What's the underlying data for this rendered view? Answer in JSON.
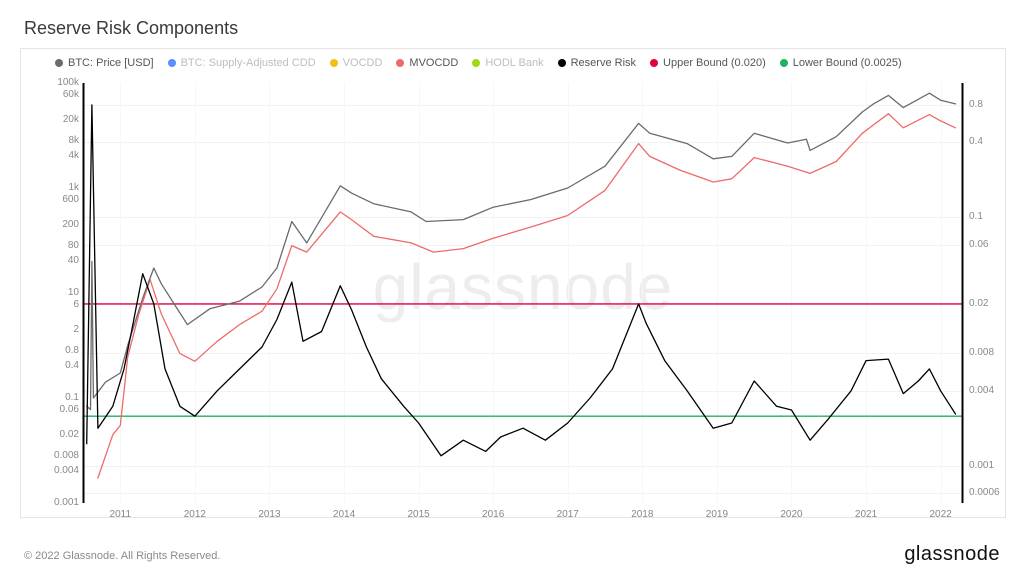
{
  "title": "Reserve Risk Components",
  "watermark": "glassnode",
  "footer_left": "© 2022 Glassnode. All Rights Reserved.",
  "footer_right": "glassnode",
  "chart": {
    "type": "line",
    "background_color": "#ffffff",
    "border_color": "#e5e5e5",
    "grid_color": "#f2f2f2",
    "axis_font_color": "#888888",
    "axis_fontsize": 10,
    "title_fontsize": 18,
    "legend_fontsize": 11,
    "x": {
      "min": 2010.5,
      "max": 2022.3,
      "ticks": [
        2011,
        2012,
        2013,
        2014,
        2015,
        2016,
        2017,
        2018,
        2019,
        2020,
        2021,
        2022
      ],
      "labels": [
        "2011",
        "2012",
        "2013",
        "2014",
        "2015",
        "2016",
        "2017",
        "2018",
        "2019",
        "2020",
        "2021",
        "2022"
      ]
    },
    "yLeft": {
      "scale": "log",
      "min": 0.001,
      "max": 100000,
      "ticks": [
        0.001,
        0.004,
        0.008,
        0.02,
        0.06,
        0.1,
        0.4,
        0.8,
        2,
        6,
        10,
        40,
        80,
        200,
        600,
        1000,
        4000,
        8000,
        20000,
        60000,
        100000
      ],
      "labels": [
        "0.001",
        "0.004",
        "0.008",
        "0.02",
        "0.06",
        "0.1",
        "0.4",
        "0.8",
        "2",
        "6",
        "10",
        "40",
        "80",
        "200",
        "600",
        "1k",
        "4k",
        "8k",
        "20k",
        "60k",
        "100k"
      ]
    },
    "yRight": {
      "scale": "log",
      "min": 0.0005,
      "max": 1.2,
      "ticks": [
        0.0006,
        0.001,
        0.004,
        0.008,
        0.02,
        0.06,
        0.1,
        0.4,
        0.8
      ],
      "labels": [
        "0.0006",
        "0.001",
        "0.004",
        "0.008",
        "0.02",
        "0.06",
        "0.1",
        "0.4",
        "0.8"
      ]
    },
    "legend": [
      {
        "key": "btc_price",
        "label": "BTC: Price [USD]",
        "color": "#6b6b6b",
        "dim": false
      },
      {
        "key": "cdd",
        "label": "BTC: Supply-Adjusted CDD",
        "color": "#5b8ff9",
        "dim": true
      },
      {
        "key": "vocdd",
        "label": "VOCDD",
        "color": "#f6bd16",
        "dim": true
      },
      {
        "key": "mvocdd",
        "label": "MVOCDD",
        "color": "#ef6a6a",
        "dim": false
      },
      {
        "key": "hodl",
        "label": "HODL Bank",
        "color": "#a0d911",
        "dim": true
      },
      {
        "key": "reserve",
        "label": "Reserve Risk",
        "color": "#000000",
        "dim": false
      },
      {
        "key": "upper",
        "label": "Upper Bound (0.020)",
        "color": "#e4003a",
        "dim": false
      },
      {
        "key": "lower",
        "label": "Lower Bound (0.0025)",
        "color": "#1db362",
        "dim": false
      }
    ],
    "bounds": {
      "upper": {
        "value": 0.02,
        "color": "#e4003a",
        "width": 1.4
      },
      "lower": {
        "value": 0.0025,
        "color": "#1db362",
        "width": 1.4
      }
    },
    "series_btc_price": {
      "color": "#6b6b6b",
      "width": 1.3,
      "axis": "left",
      "points": [
        [
          2010.55,
          0.07
        ],
        [
          2010.6,
          0.06
        ],
        [
          2010.62,
          40
        ],
        [
          2010.64,
          0.1
        ],
        [
          2010.8,
          0.2
        ],
        [
          2011.0,
          0.3
        ],
        [
          2011.1,
          1.0
        ],
        [
          2011.3,
          8
        ],
        [
          2011.45,
          30
        ],
        [
          2011.55,
          15
        ],
        [
          2011.9,
          2.5
        ],
        [
          2012.2,
          5
        ],
        [
          2012.6,
          7
        ],
        [
          2012.9,
          13
        ],
        [
          2013.1,
          30
        ],
        [
          2013.3,
          230
        ],
        [
          2013.5,
          90
        ],
        [
          2013.95,
          1100
        ],
        [
          2014.1,
          800
        ],
        [
          2014.4,
          500
        ],
        [
          2014.9,
          350
        ],
        [
          2015.1,
          230
        ],
        [
          2015.6,
          250
        ],
        [
          2016.0,
          430
        ],
        [
          2016.5,
          600
        ],
        [
          2017.0,
          1000
        ],
        [
          2017.5,
          2600
        ],
        [
          2017.95,
          17000
        ],
        [
          2018.1,
          11000
        ],
        [
          2018.6,
          7000
        ],
        [
          2018.95,
          3600
        ],
        [
          2019.2,
          4000
        ],
        [
          2019.5,
          11000
        ],
        [
          2019.95,
          7200
        ],
        [
          2020.2,
          8500
        ],
        [
          2020.25,
          5200
        ],
        [
          2020.6,
          9500
        ],
        [
          2020.95,
          28000
        ],
        [
          2021.1,
          40000
        ],
        [
          2021.3,
          58000
        ],
        [
          2021.5,
          34000
        ],
        [
          2021.85,
          64000
        ],
        [
          2022.0,
          47000
        ],
        [
          2022.2,
          40000
        ]
      ]
    },
    "series_mvocdd": {
      "color": "#ef6a6a",
      "width": 1.3,
      "axis": "left",
      "points": [
        [
          2010.7,
          0.003
        ],
        [
          2010.9,
          0.02
        ],
        [
          2011.0,
          0.03
        ],
        [
          2011.1,
          0.6
        ],
        [
          2011.25,
          4
        ],
        [
          2011.4,
          18
        ],
        [
          2011.55,
          4
        ],
        [
          2011.8,
          0.7
        ],
        [
          2012.0,
          0.5
        ],
        [
          2012.3,
          1.2
        ],
        [
          2012.6,
          2.5
        ],
        [
          2012.9,
          4.5
        ],
        [
          2013.1,
          12
        ],
        [
          2013.3,
          80
        ],
        [
          2013.5,
          60
        ],
        [
          2013.95,
          350
        ],
        [
          2014.1,
          250
        ],
        [
          2014.4,
          120
        ],
        [
          2014.9,
          90
        ],
        [
          2015.2,
          60
        ],
        [
          2015.6,
          70
        ],
        [
          2016.0,
          110
        ],
        [
          2016.5,
          180
        ],
        [
          2017.0,
          300
        ],
        [
          2017.5,
          900
        ],
        [
          2017.95,
          7000
        ],
        [
          2018.1,
          4000
        ],
        [
          2018.5,
          2200
        ],
        [
          2018.95,
          1300
        ],
        [
          2019.2,
          1500
        ],
        [
          2019.5,
          3800
        ],
        [
          2019.95,
          2600
        ],
        [
          2020.25,
          1900
        ],
        [
          2020.6,
          3200
        ],
        [
          2020.95,
          11000
        ],
        [
          2021.3,
          26000
        ],
        [
          2021.5,
          14000
        ],
        [
          2021.85,
          25000
        ],
        [
          2022.0,
          19000
        ],
        [
          2022.2,
          14000
        ]
      ]
    },
    "series_reserve_risk": {
      "color": "#000000",
      "width": 1.3,
      "axis": "right",
      "points": [
        [
          2010.55,
          0.0015
        ],
        [
          2010.62,
          0.8
        ],
        [
          2010.7,
          0.002
        ],
        [
          2010.9,
          0.003
        ],
        [
          2011.05,
          0.006
        ],
        [
          2011.15,
          0.012
        ],
        [
          2011.3,
          0.035
        ],
        [
          2011.45,
          0.02
        ],
        [
          2011.6,
          0.006
        ],
        [
          2011.8,
          0.003
        ],
        [
          2012.0,
          0.0025
        ],
        [
          2012.3,
          0.004
        ],
        [
          2012.6,
          0.006
        ],
        [
          2012.9,
          0.009
        ],
        [
          2013.1,
          0.015
        ],
        [
          2013.3,
          0.03
        ],
        [
          2013.45,
          0.01
        ],
        [
          2013.7,
          0.012
        ],
        [
          2013.95,
          0.028
        ],
        [
          2014.1,
          0.018
        ],
        [
          2014.3,
          0.009
        ],
        [
          2014.5,
          0.005
        ],
        [
          2014.8,
          0.003
        ],
        [
          2015.0,
          0.0022
        ],
        [
          2015.3,
          0.0012
        ],
        [
          2015.6,
          0.0016
        ],
        [
          2015.9,
          0.0013
        ],
        [
          2016.1,
          0.0017
        ],
        [
          2016.4,
          0.002
        ],
        [
          2016.7,
          0.0016
        ],
        [
          2017.0,
          0.0022
        ],
        [
          2017.3,
          0.0035
        ],
        [
          2017.6,
          0.006
        ],
        [
          2017.95,
          0.02
        ],
        [
          2018.05,
          0.014
        ],
        [
          2018.3,
          0.007
        ],
        [
          2018.6,
          0.004
        ],
        [
          2018.95,
          0.002
        ],
        [
          2019.2,
          0.0022
        ],
        [
          2019.5,
          0.0048
        ],
        [
          2019.8,
          0.003
        ],
        [
          2020.0,
          0.0028
        ],
        [
          2020.25,
          0.0016
        ],
        [
          2020.5,
          0.0024
        ],
        [
          2020.8,
          0.004
        ],
        [
          2021.0,
          0.007
        ],
        [
          2021.3,
          0.0072
        ],
        [
          2021.5,
          0.0038
        ],
        [
          2021.7,
          0.0048
        ],
        [
          2021.85,
          0.006
        ],
        [
          2022.0,
          0.004
        ],
        [
          2022.2,
          0.0026
        ]
      ]
    }
  }
}
